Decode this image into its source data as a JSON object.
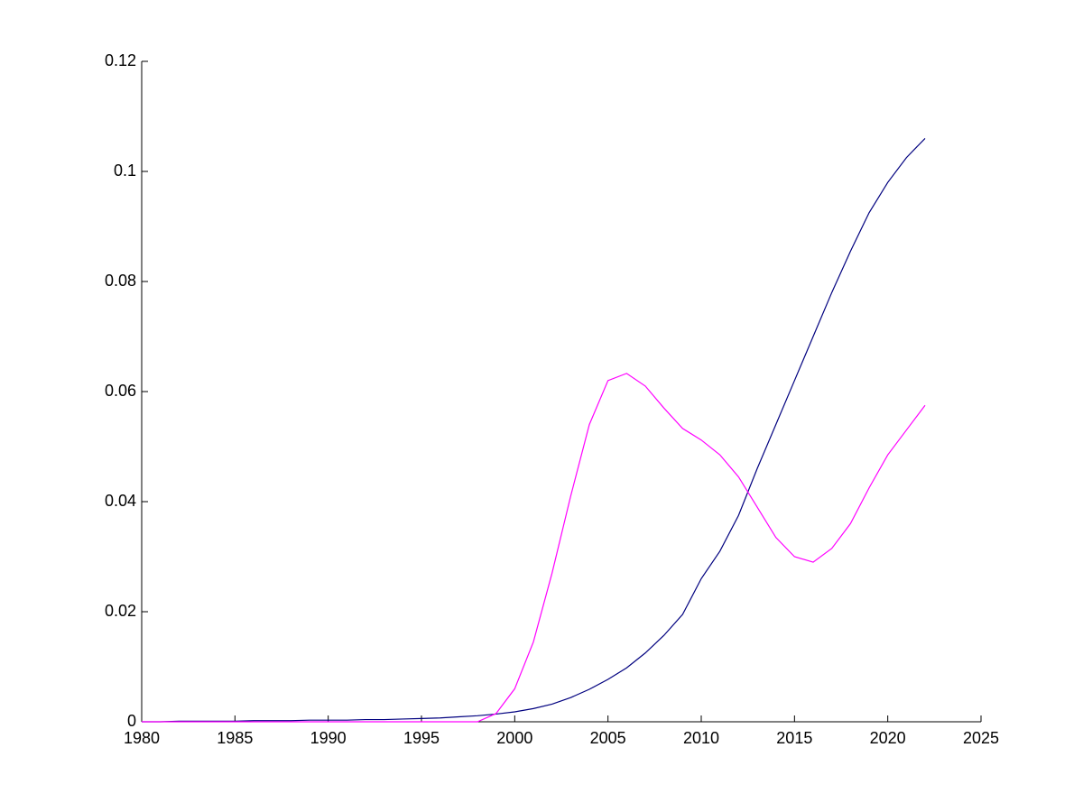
{
  "chart_data": {
    "type": "line",
    "x": [
      1980,
      1981,
      1982,
      1983,
      1984,
      1985,
      1986,
      1987,
      1988,
      1989,
      1990,
      1991,
      1992,
      1993,
      1994,
      1995,
      1996,
      1997,
      1998,
      1999,
      2000,
      2001,
      2002,
      2003,
      2004,
      2005,
      2006,
      2007,
      2008,
      2009,
      2010,
      2011,
      2012,
      2013,
      2014,
      2015,
      2016,
      2017,
      2018,
      2019,
      2020,
      2021,
      2022
    ],
    "series": [
      {
        "color": "#00007f",
        "values": [
          0,
          0,
          0.0001,
          0.0001,
          0.0001,
          0.0001,
          0.0002,
          0.0002,
          0.0002,
          0.0003,
          0.0003,
          0.0003,
          0.0004,
          0.0004,
          0.0005,
          0.0006,
          0.0007,
          0.0009,
          0.0011,
          0.0014,
          0.0018,
          0.0024,
          0.0032,
          0.0044,
          0.0059,
          0.0077,
          0.0098,
          0.0125,
          0.0157,
          0.0195,
          0.026,
          0.031,
          0.0375,
          0.046,
          0.054,
          0.062,
          0.07,
          0.078,
          0.0855,
          0.0925,
          0.098,
          0.1025,
          0.106
        ]
      },
      {
        "color": "#ff00ff",
        "values": [
          0,
          0,
          0,
          0,
          0,
          0,
          0,
          0,
          0,
          0,
          0,
          0,
          0,
          0,
          0,
          0,
          0,
          0,
          0,
          0.0015,
          0.006,
          0.0145,
          0.027,
          0.041,
          0.054,
          0.062,
          0.0633,
          0.061,
          0.057,
          0.0533,
          0.0512,
          0.0485,
          0.0445,
          0.039,
          0.0335,
          0.03,
          0.029,
          0.0315,
          0.036,
          0.0425,
          0.0485,
          0.053,
          0.0575
        ]
      }
    ],
    "xlim": [
      1980,
      2025
    ],
    "xticks": [
      1980,
      1985,
      1990,
      1995,
      2000,
      2005,
      2010,
      2015,
      2020,
      2025
    ],
    "ylim": [
      0,
      0.12
    ],
    "yticks": [
      0,
      0.02,
      0.04,
      0.06,
      0.08,
      0.1,
      0.12
    ]
  }
}
